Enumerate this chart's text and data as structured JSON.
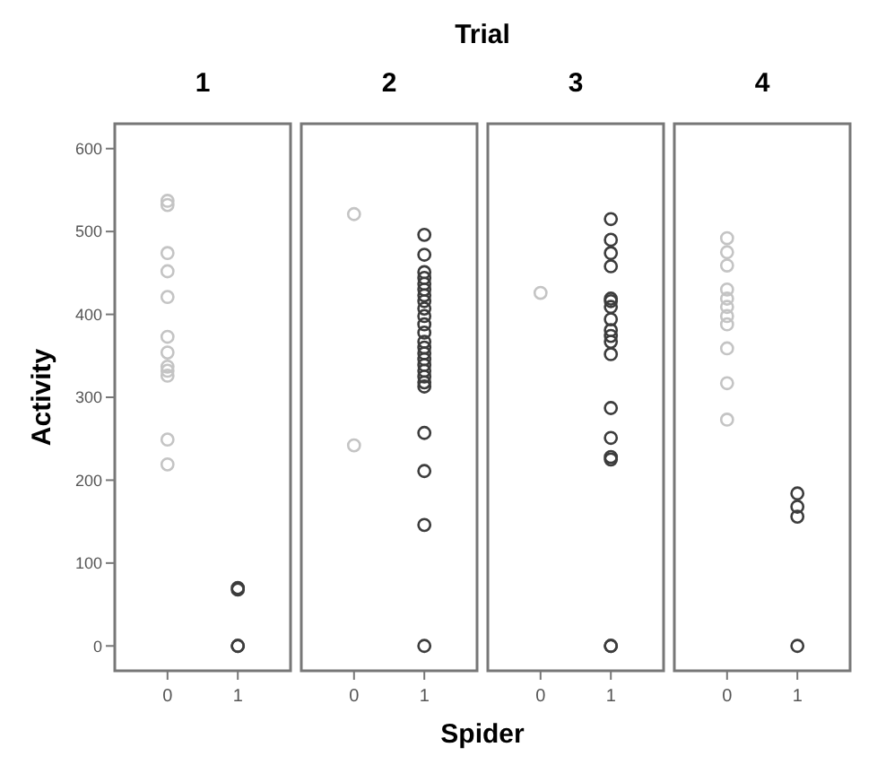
{
  "chart_data": [
    {
      "type": "scatter",
      "title": "1",
      "ylabel": "Activity",
      "categories": [
        "0",
        "1"
      ],
      "ylim": [
        -30,
        630
      ],
      "yticks": [
        0,
        100,
        200,
        300,
        400,
        500,
        600
      ],
      "marker": "circle",
      "grid": false,
      "series": [
        {
          "color": "#c4c4c4",
          "x": [
            "0",
            "0",
            "0",
            "0",
            "0",
            "0",
            "0",
            "0",
            "0",
            "0",
            "0",
            "0"
          ],
          "values": [
            537,
            532,
            474,
            452,
            421,
            373,
            354,
            337,
            332,
            326,
            249,
            219
          ]
        },
        {
          "color": "#3c3c3c",
          "x": [
            "1",
            "1",
            "1",
            "1"
          ],
          "values": [
            70,
            68,
            0,
            0
          ]
        }
      ]
    },
    {
      "type": "scatter",
      "title": "2",
      "xlabel": "Spider",
      "annotations": [
        "Trial"
      ],
      "categories": [
        "0",
        "1"
      ],
      "ylim": [
        -30,
        630
      ],
      "tick_labels": "x",
      "marker": "circle",
      "grid": false,
      "series": [
        {
          "color": "#c4c4c4",
          "x": [
            "0",
            "0"
          ],
          "values": [
            521,
            242
          ]
        },
        {
          "color": "#3c3c3c",
          "x": [
            "1",
            "1",
            "1",
            "1",
            "1",
            "1",
            "1",
            "1",
            "1",
            "1",
            "1",
            "1",
            "1",
            "1",
            "1",
            "1",
            "1",
            "1",
            "1",
            "1",
            "1",
            "1",
            "1",
            "1",
            "1"
          ],
          "values": [
            496,
            472,
            451,
            444,
            437,
            430,
            423,
            416,
            407,
            398,
            388,
            378,
            367,
            360,
            353,
            346,
            339,
            332,
            325,
            318,
            313,
            257,
            211,
            146,
            0
          ]
        }
      ]
    },
    {
      "type": "scatter",
      "title": "3",
      "categories": [
        "0",
        "1"
      ],
      "ylim": [
        -30,
        630
      ],
      "tick_labels": "x",
      "marker": "circle",
      "grid": false,
      "series": [
        {
          "color": "#c4c4c4",
          "x": [
            "0"
          ],
          "values": [
            426
          ]
        },
        {
          "color": "#3c3c3c",
          "x": [
            "1",
            "1",
            "1",
            "1",
            "1",
            "1",
            "1",
            "1",
            "1",
            "1",
            "1",
            "1",
            "1",
            "1",
            "1",
            "1",
            "1",
            "1"
          ],
          "values": [
            515,
            490,
            474,
            458,
            419,
            416,
            409,
            394,
            381,
            374,
            367,
            352,
            287,
            251,
            228,
            225,
            0,
            0
          ]
        }
      ]
    },
    {
      "type": "scatter",
      "title": "4",
      "categories": [
        "0",
        "1"
      ],
      "ylim": [
        -30,
        630
      ],
      "tick_labels": "x",
      "marker": "circle",
      "grid": false,
      "series": [
        {
          "color": "#c4c4c4",
          "x": [
            "0",
            "0",
            "0",
            "0",
            "0",
            "0",
            "0",
            "0",
            "0",
            "0",
            "0"
          ],
          "values": [
            492,
            475,
            459,
            430,
            419,
            409,
            398,
            388,
            359,
            317,
            273
          ]
        },
        {
          "color": "#3c3c3c",
          "x": [
            "1",
            "1",
            "1",
            "1"
          ],
          "values": [
            184,
            168,
            156,
            0
          ]
        }
      ]
    }
  ]
}
